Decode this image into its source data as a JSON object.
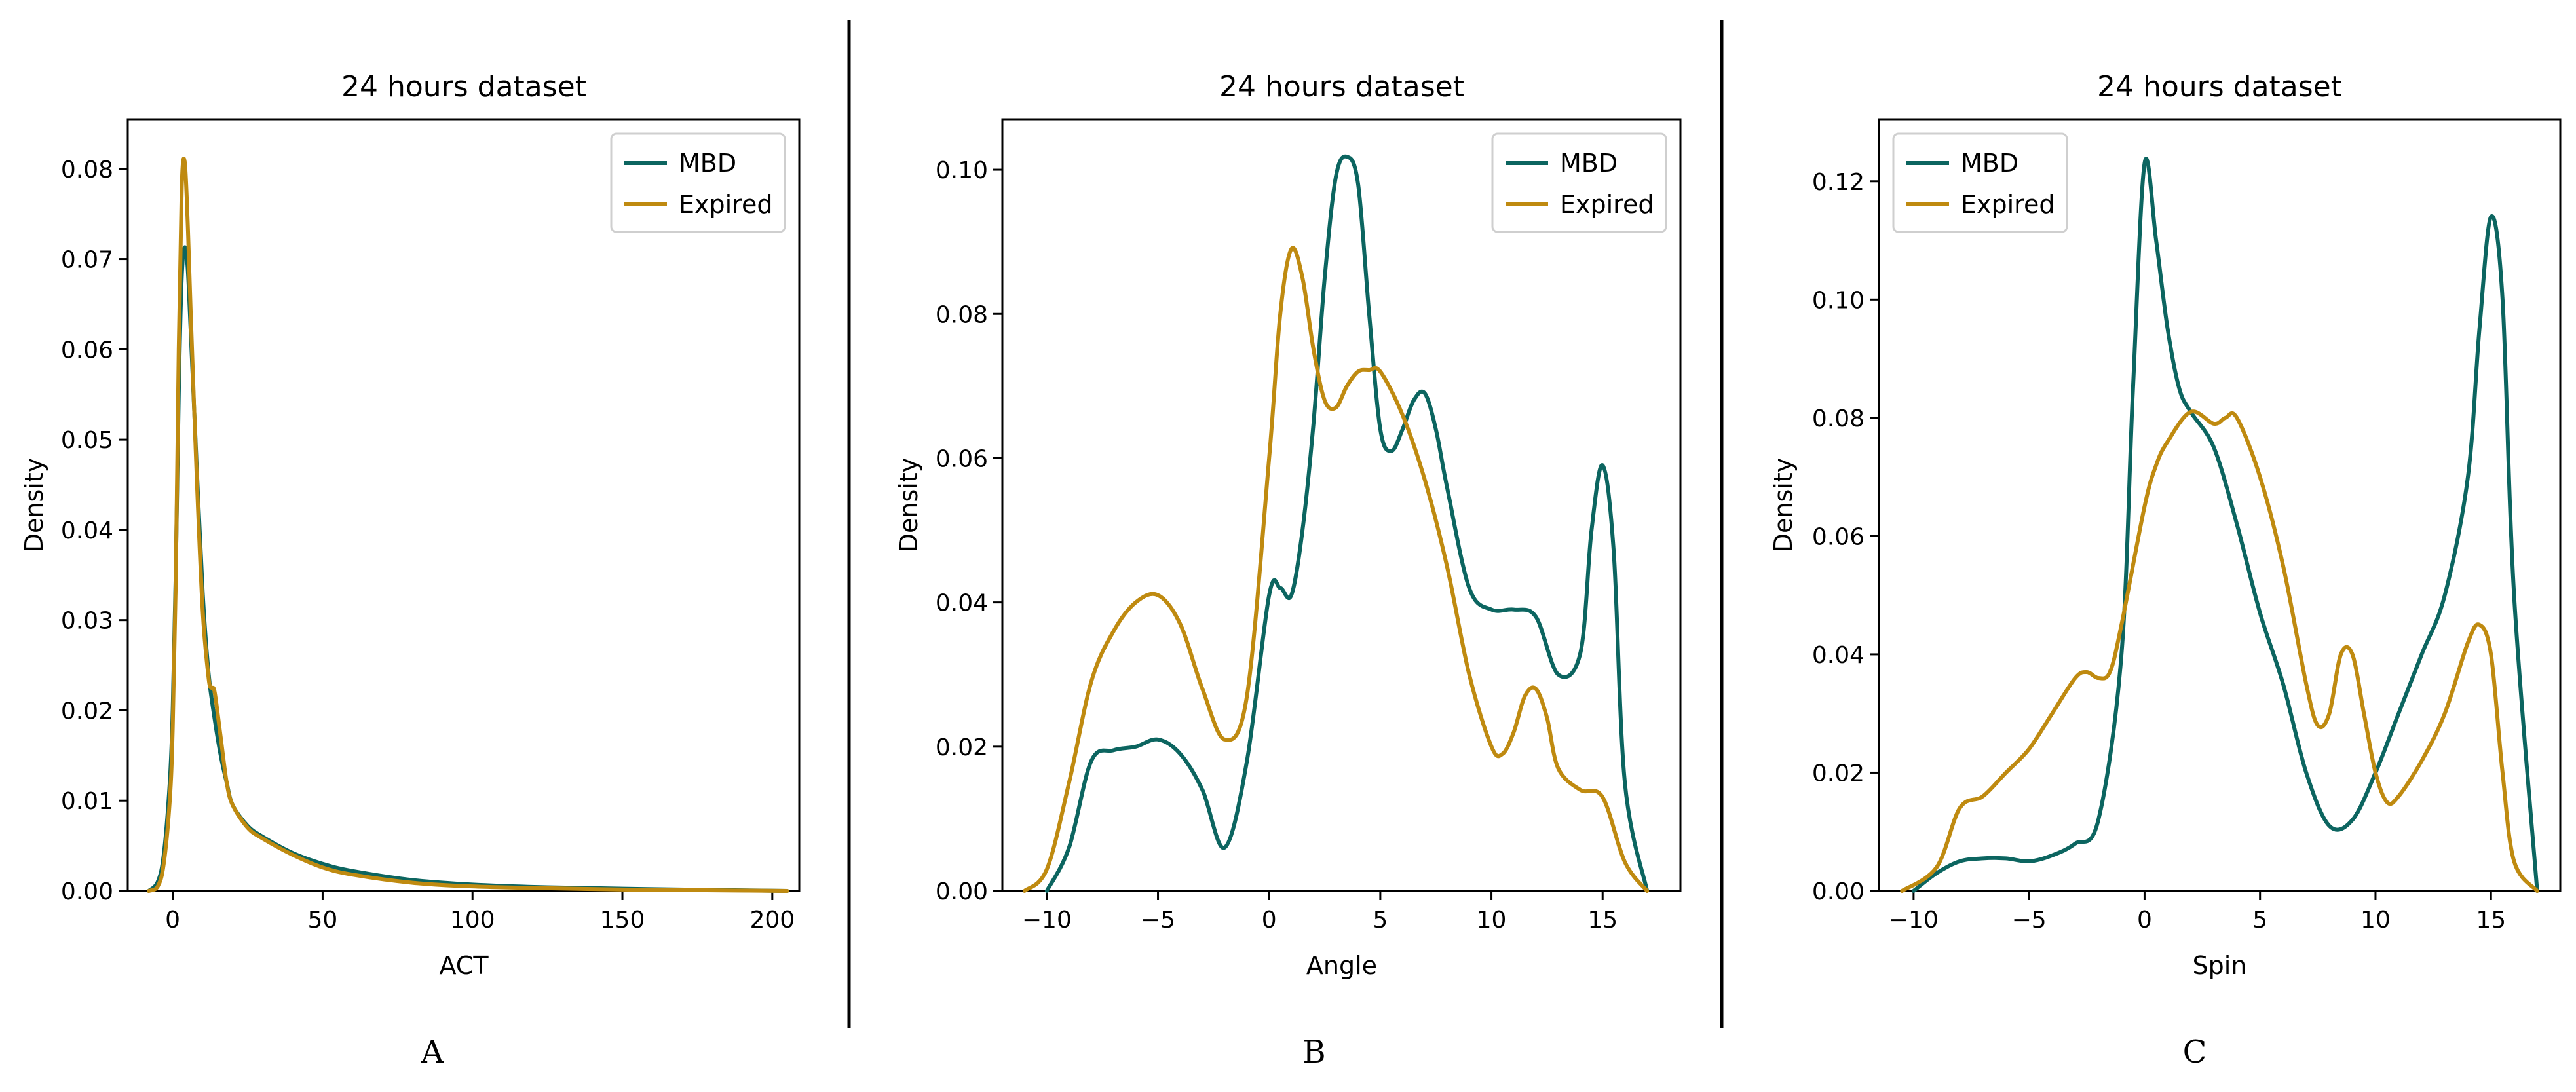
{
  "colors": {
    "mbd": "#0c6560",
    "expired": "#bf8a10",
    "divider": "#000000"
  },
  "chart_data": [
    {
      "type": "line",
      "panel_label": "A",
      "title": "24 hours dataset",
      "xlabel": "ACT",
      "ylabel": "Density",
      "xlim": [
        -15,
        209
      ],
      "ylim": [
        0,
        0.0855
      ],
      "xticks": [
        0,
        50,
        100,
        150,
        200
      ],
      "xtick_labels": [
        "0",
        "50",
        "100",
        "150",
        "200"
      ],
      "yticks": [
        0,
        0.01,
        0.02,
        0.03,
        0.04,
        0.05,
        0.06,
        0.07,
        0.08
      ],
      "ytick_labels": [
        "0.00",
        "0.01",
        "0.02",
        "0.03",
        "0.04",
        "0.05",
        "0.06",
        "0.07",
        "0.08"
      ],
      "legend_position": "top-right",
      "series": [
        {
          "name": "MBD",
          "color_key": "mbd",
          "x": [
            -8,
            -5,
            -3,
            -1,
            0,
            1,
            2,
            3,
            4,
            5,
            6,
            8,
            10,
            12,
            14,
            16,
            18,
            20,
            25,
            30,
            40,
            50,
            60,
            80,
            100,
            125,
            150,
            175,
            205
          ],
          "y": [
            0,
            0.001,
            0.004,
            0.012,
            0.02,
            0.035,
            0.055,
            0.068,
            0.0713,
            0.069,
            0.062,
            0.047,
            0.033,
            0.024,
            0.019,
            0.015,
            0.012,
            0.0095,
            0.0072,
            0.006,
            0.0042,
            0.003,
            0.0022,
            0.0012,
            0.0007,
            0.0004,
            0.00025,
            0.00012,
            0
          ]
        },
        {
          "name": "Expired",
          "color_key": "expired",
          "x": [
            -8,
            -5,
            -3,
            -1,
            0,
            1,
            2,
            3,
            4,
            5,
            6,
            8,
            10,
            12,
            13,
            14,
            16,
            18,
            20,
            25,
            30,
            40,
            50,
            60,
            80,
            100,
            125,
            150,
            175,
            205
          ],
          "y": [
            0,
            0.0005,
            0.003,
            0.01,
            0.018,
            0.034,
            0.06,
            0.078,
            0.0808,
            0.074,
            0.064,
            0.046,
            0.031,
            0.0235,
            0.0225,
            0.022,
            0.017,
            0.012,
            0.0095,
            0.007,
            0.0058,
            0.004,
            0.0026,
            0.0018,
            0.0009,
            0.0005,
            0.0003,
            0.00015,
            8e-05,
            0
          ]
        }
      ]
    },
    {
      "type": "line",
      "panel_label": "B",
      "title": "24 hours dataset",
      "xlabel": "Angle",
      "ylabel": "Density",
      "xlim": [
        -12,
        18.5
      ],
      "ylim": [
        0,
        0.107
      ],
      "xticks": [
        -10,
        -5,
        0,
        5,
        10,
        15
      ],
      "xtick_labels": [
        "−10",
        "−5",
        "0",
        "5",
        "10",
        "15"
      ],
      "yticks": [
        0,
        0.02,
        0.04,
        0.06,
        0.08,
        0.1
      ],
      "ytick_labels": [
        "0.00",
        "0.02",
        "0.04",
        "0.06",
        "0.08",
        "0.10"
      ],
      "legend_position": "top-right",
      "series": [
        {
          "name": "MBD",
          "color_key": "mbd",
          "x": [
            -10,
            -9,
            -8,
            -7,
            -6,
            -5,
            -4,
            -3,
            -2,
            -1,
            0,
            0.5,
            1,
            1.5,
            2,
            2.5,
            3,
            3.5,
            4,
            4.5,
            5,
            5.5,
            6,
            6.5,
            7,
            7.5,
            8,
            9,
            10,
            11,
            12,
            13,
            14,
            14.5,
            15,
            15.5,
            16,
            17
          ],
          "y": [
            0,
            0.006,
            0.018,
            0.0195,
            0.02,
            0.021,
            0.019,
            0.014,
            0.006,
            0.018,
            0.041,
            0.042,
            0.041,
            0.05,
            0.065,
            0.085,
            0.099,
            0.1018,
            0.098,
            0.08,
            0.064,
            0.061,
            0.064,
            0.068,
            0.069,
            0.064,
            0.056,
            0.042,
            0.039,
            0.039,
            0.038,
            0.03,
            0.033,
            0.05,
            0.059,
            0.047,
            0.015,
            0
          ]
        },
        {
          "name": "Expired",
          "color_key": "expired",
          "x": [
            -11,
            -10,
            -9,
            -8,
            -7,
            -6,
            -5,
            -4,
            -3,
            -2,
            -1,
            0,
            0.5,
            1,
            1.5,
            2,
            2.5,
            3,
            3.5,
            4,
            4.5,
            5,
            6,
            7,
            8,
            9,
            10,
            10.5,
            11,
            11.5,
            12,
            12.5,
            13,
            14,
            15,
            16,
            17
          ],
          "y": [
            0,
            0.003,
            0.015,
            0.029,
            0.036,
            0.04,
            0.041,
            0.037,
            0.028,
            0.021,
            0.027,
            0.06,
            0.08,
            0.089,
            0.085,
            0.075,
            0.068,
            0.067,
            0.07,
            0.072,
            0.0722,
            0.072,
            0.066,
            0.057,
            0.045,
            0.03,
            0.02,
            0.019,
            0.022,
            0.027,
            0.028,
            0.024,
            0.017,
            0.014,
            0.013,
            0.004,
            0
          ]
        }
      ]
    },
    {
      "type": "line",
      "panel_label": "C",
      "title": "24 hours dataset",
      "xlabel": "Spin",
      "ylabel": "Density",
      "xlim": [
        -11.5,
        18
      ],
      "ylim": [
        0,
        0.1305
      ],
      "xticks": [
        -10,
        -5,
        0,
        5,
        10,
        15
      ],
      "xtick_labels": [
        "−10",
        "−5",
        "0",
        "5",
        "10",
        "15"
      ],
      "yticks": [
        0,
        0.02,
        0.04,
        0.06,
        0.08,
        0.1,
        0.12
      ],
      "ytick_labels": [
        "0.00",
        "0.02",
        "0.04",
        "0.06",
        "0.08",
        "0.10",
        "0.12"
      ],
      "legend_position": "top-left",
      "series": [
        {
          "name": "MBD",
          "color_key": "mbd",
          "x": [
            -10,
            -9,
            -8,
            -7,
            -6,
            -5,
            -4,
            -3,
            -2,
            -1,
            -0.5,
            0,
            0.5,
            1,
            1.5,
            2,
            3,
            4,
            5,
            6,
            7,
            8,
            9,
            10,
            11,
            12,
            13,
            14,
            14.5,
            15,
            15.5,
            16,
            17
          ],
          "y": [
            0,
            0.003,
            0.005,
            0.0055,
            0.0055,
            0.005,
            0.006,
            0.008,
            0.012,
            0.04,
            0.085,
            0.123,
            0.11,
            0.095,
            0.085,
            0.081,
            0.075,
            0.062,
            0.047,
            0.035,
            0.02,
            0.011,
            0.012,
            0.02,
            0.03,
            0.04,
            0.05,
            0.07,
            0.095,
            0.114,
            0.1,
            0.05,
            0
          ]
        },
        {
          "name": "Expired",
          "color_key": "expired",
          "x": [
            -10.5,
            -9,
            -8,
            -7,
            -6,
            -5,
            -4,
            -3,
            -2.5,
            -2,
            -1.5,
            -1,
            0,
            0.5,
            1,
            2,
            3,
            3.5,
            4,
            5,
            6,
            7,
            7.5,
            8,
            8.5,
            9,
            9.5,
            10,
            10.5,
            11,
            12,
            13,
            14,
            14.5,
            15,
            15.5,
            16,
            17
          ],
          "y": [
            0,
            0.004,
            0.014,
            0.016,
            0.02,
            0.024,
            0.03,
            0.036,
            0.037,
            0.036,
            0.037,
            0.045,
            0.065,
            0.072,
            0.076,
            0.081,
            0.079,
            0.08,
            0.08,
            0.07,
            0.055,
            0.035,
            0.028,
            0.03,
            0.04,
            0.04,
            0.03,
            0.02,
            0.015,
            0.016,
            0.022,
            0.03,
            0.042,
            0.045,
            0.04,
            0.02,
            0.005,
            0
          ]
        }
      ]
    }
  ]
}
